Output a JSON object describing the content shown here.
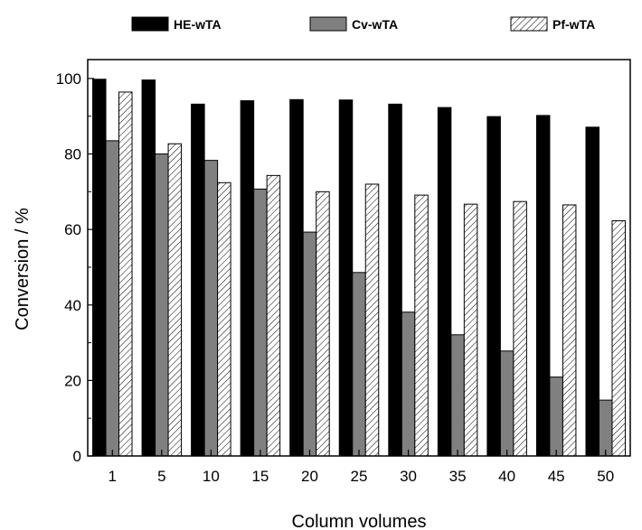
{
  "chart_data": {
    "type": "bar",
    "xlabel": "Column volumes",
    "ylabel": "Conversion / %",
    "ylim": [
      0,
      105
    ],
    "yticks": [
      0,
      20,
      40,
      60,
      80,
      100
    ],
    "grid": false,
    "legend_position": "top",
    "categories": [
      "1",
      "5",
      "10",
      "15",
      "20",
      "25",
      "30",
      "35",
      "40",
      "45",
      "50"
    ],
    "series": [
      {
        "name": "HE-wTA",
        "fill": "solid-black",
        "color": "#000000",
        "values": [
          99.8,
          99.6,
          93.2,
          94.1,
          94.4,
          94.3,
          93.2,
          92.3,
          89.9,
          90.2,
          87.1
        ]
      },
      {
        "name": "Cv-wTA",
        "fill": "solid-gray",
        "color": "#808080",
        "values": [
          83.5,
          80.0,
          78.3,
          70.7,
          59.3,
          48.6,
          38.1,
          32.1,
          27.8,
          20.9,
          14.8
        ]
      },
      {
        "name": "Pf-wTA",
        "fill": "diagonal-hatch",
        "color": "#ffffff",
        "values": [
          96.4,
          82.7,
          72.4,
          74.3,
          70.0,
          72.0,
          69.1,
          66.7,
          67.4,
          66.5,
          62.3
        ]
      }
    ]
  }
}
